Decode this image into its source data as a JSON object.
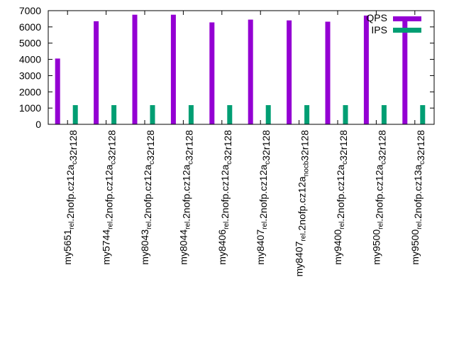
{
  "chart_data": {
    "type": "bar",
    "title": "",
    "xlabel": "",
    "ylabel": "",
    "ylim": [
      0,
      7000
    ],
    "yticks": [
      0,
      1000,
      2000,
      3000,
      4000,
      5000,
      6000,
      7000
    ],
    "grid": false,
    "legend_position": "top-right",
    "categories": [
      {
        "main": "my5651",
        "sub": "rel",
        "mid": ".2nofp.cz12a",
        "sub2": "c",
        "tail": "32r128"
      },
      {
        "main": "my5744",
        "sub": "rel",
        "mid": ".2nofp.cz12a",
        "sub2": "c",
        "tail": "32r128"
      },
      {
        "main": "my8043",
        "sub": "rel",
        "mid": ".2nofp.cz12a",
        "sub2": "c",
        "tail": "32r128"
      },
      {
        "main": "my8044",
        "sub": "rel",
        "mid": ".2nofp.cz12a",
        "sub2": "c",
        "tail": "32r128"
      },
      {
        "main": "my8406",
        "sub": "rel",
        "mid": ".2nofp.cz12a",
        "sub2": "c",
        "tail": "32r128"
      },
      {
        "main": "my8407",
        "sub": "rel",
        "mid": ".2nofp.cz12a",
        "sub2": "c",
        "tail": "32r128"
      },
      {
        "main": "my8407",
        "sub": "rel",
        "mid": ".2nofp.cz12a",
        "sub2": "nocb",
        "tail": "32r128"
      },
      {
        "main": "my9400",
        "sub": "rel",
        "mid": ".2nofp.cz12a",
        "sub2": "c",
        "tail": "32r128"
      },
      {
        "main": "my9500",
        "sub": "rel",
        "mid": ".2nofp.cz12a",
        "sub2": "c",
        "tail": "32r128"
      },
      {
        "main": "my9500",
        "sub": "rel",
        "mid": ".2nofp.cz13a",
        "sub2": "c",
        "tail": "32r128"
      }
    ],
    "series": [
      {
        "name": "QPS",
        "color": "#9400d3",
        "values": [
          4050,
          6350,
          6750,
          6750,
          6280,
          6450,
          6400,
          6320,
          6700,
          6600
        ]
      },
      {
        "name": "IPS",
        "color": "#009e73",
        "values": [
          1180,
          1180,
          1180,
          1180,
          1180,
          1180,
          1180,
          1180,
          1180,
          1180
        ]
      }
    ]
  }
}
